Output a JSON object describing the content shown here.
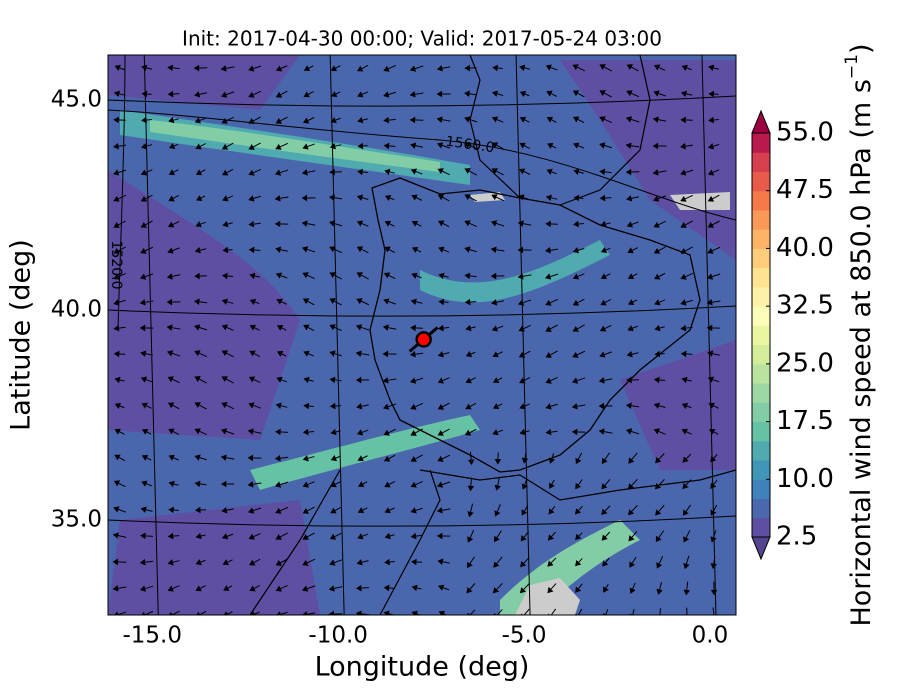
{
  "chart_data": {
    "type": "map",
    "title": "Init: 2017-04-30 00:00; Valid: 2017-05-24 03:00",
    "xlabel": "Longitude (deg)",
    "ylabel": "Latitude (deg)",
    "xlim": [
      -16.19,
      0.7
    ],
    "ylim": [
      32.74,
      46.07
    ],
    "xticks": [
      {
        "value": -15,
        "label": "-15.0"
      },
      {
        "value": -10,
        "label": "-10.0"
      },
      {
        "value": -5,
        "label": "-5.0"
      },
      {
        "value": 0,
        "label": "0.0"
      }
    ],
    "yticks": [
      {
        "value": 35,
        "label": "35.0"
      },
      {
        "value": 40,
        "label": "40.0"
      },
      {
        "value": 45,
        "label": "45.0"
      }
    ],
    "grid": true,
    "contour_labels": [
      "1560.0",
      "1520.0"
    ],
    "point": {
      "lon": -7.7,
      "lat": 39.3,
      "color": "#ff0000"
    },
    "colorbar": {
      "label": "Horizontal wind speed at 850.0 hPa (m s",
      "label_exponent": "−1",
      "label_end": ")",
      "lim": [
        2.5,
        55
      ],
      "ticks": [
        {
          "value": 2.5,
          "label": "2.5"
        },
        {
          "value": 10,
          "label": "10.0"
        },
        {
          "value": 17.5,
          "label": "17.5"
        },
        {
          "value": 25,
          "label": "25.0"
        },
        {
          "value": 32.5,
          "label": "32.5"
        },
        {
          "value": 40,
          "label": "40.0"
        },
        {
          "value": 47.5,
          "label": "47.5"
        },
        {
          "value": 55,
          "label": "55.0"
        }
      ],
      "colors": [
        "#5e4fa2",
        "#4b68ae",
        "#3f82bb",
        "#3f96b7",
        "#4fabaf",
        "#66c2a5",
        "#82cda5",
        "#9dd8a4",
        "#bae3a0",
        "#d4ed9b",
        "#ebf7a0",
        "#fbfdb9",
        "#fff0a8",
        "#fee491",
        "#fdcd79",
        "#fdb466",
        "#fa9857",
        "#f67a49",
        "#e85b4b",
        "#d6404e",
        "#b81b4b"
      ],
      "under_color": "#54438f",
      "over_color": "#9e0142"
    }
  }
}
